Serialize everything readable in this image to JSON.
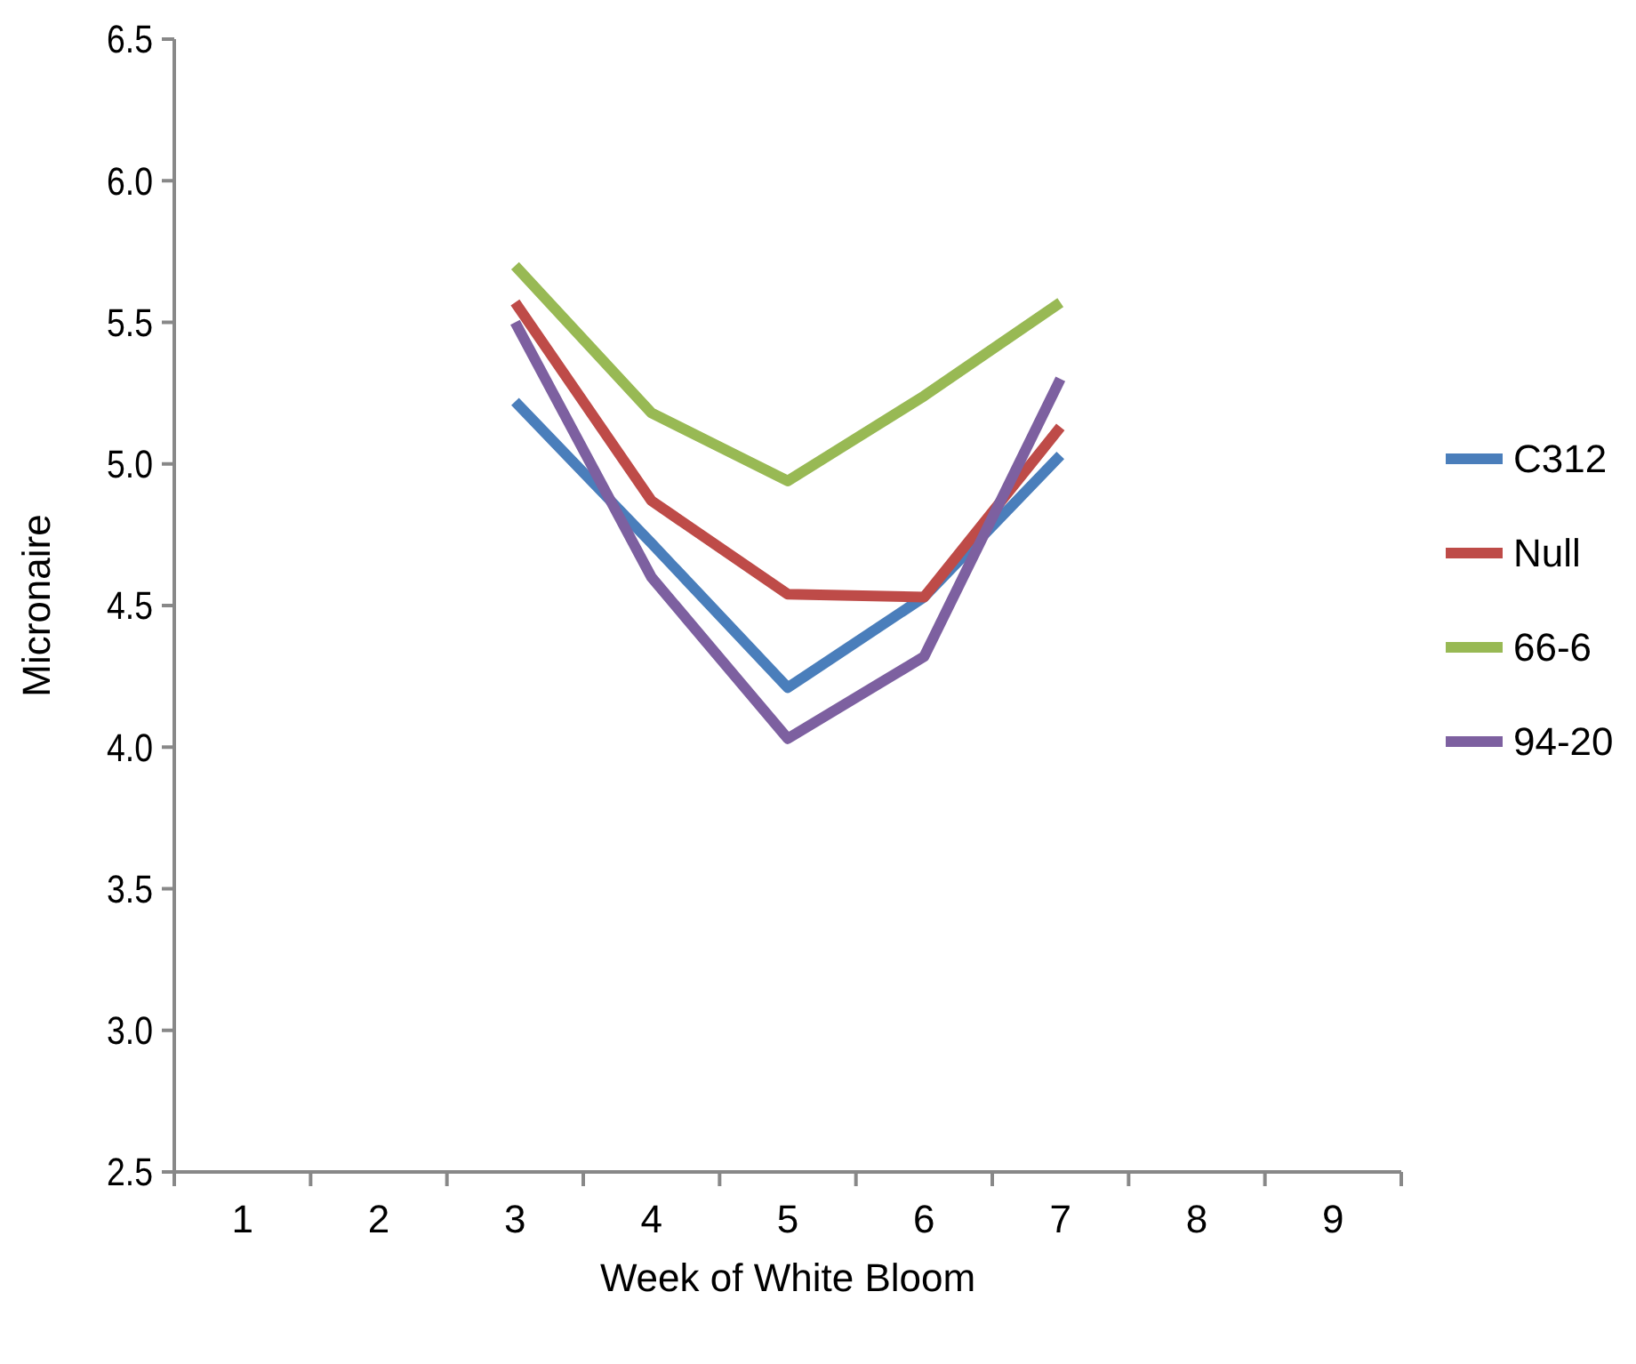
{
  "chart_data": {
    "type": "line",
    "xlabel": "Week of White Bloom",
    "ylabel": "Micronaire",
    "categories": [
      "1",
      "2",
      "3",
      "4",
      "5",
      "6",
      "7",
      "8",
      "9"
    ],
    "ylim": [
      2.5,
      6.5
    ],
    "yticks": [
      {
        "value": 2.5,
        "label": "2.5"
      },
      {
        "value": 3,
        "label": "3.0"
      },
      {
        "value": 3.5,
        "label": "3.5"
      },
      {
        "value": 4,
        "label": "4.0"
      },
      {
        "value": 4.5,
        "label": "4.5"
      },
      {
        "value": 5,
        "label": "5.0"
      },
      {
        "value": 5.5,
        "label": "5.5"
      },
      {
        "value": 6,
        "label": "6.0"
      },
      {
        "value": 6.5,
        "label": "6.5"
      }
    ],
    "series": [
      {
        "name": "C312",
        "color": "#4a7ebb",
        "values": [
          null,
          null,
          5.22,
          4.72,
          4.21,
          4.53,
          5.03,
          null,
          null
        ]
      },
      {
        "name": "Null",
        "color": "#be4b48",
        "values": [
          null,
          null,
          5.57,
          4.87,
          4.54,
          4.53,
          5.13,
          null,
          null
        ]
      },
      {
        "name": "66-6",
        "color": "#98b954",
        "values": [
          null,
          null,
          5.7,
          5.18,
          4.94,
          5.24,
          5.57,
          null,
          null
        ]
      },
      {
        "name": "94-20",
        "color": "#7d60a0",
        "values": [
          null,
          null,
          5.5,
          4.6,
          4.03,
          4.32,
          5.3,
          null,
          null
        ]
      }
    ],
    "grid": false,
    "legend": "right",
    "marker": "none",
    "line_style": "solid"
  }
}
